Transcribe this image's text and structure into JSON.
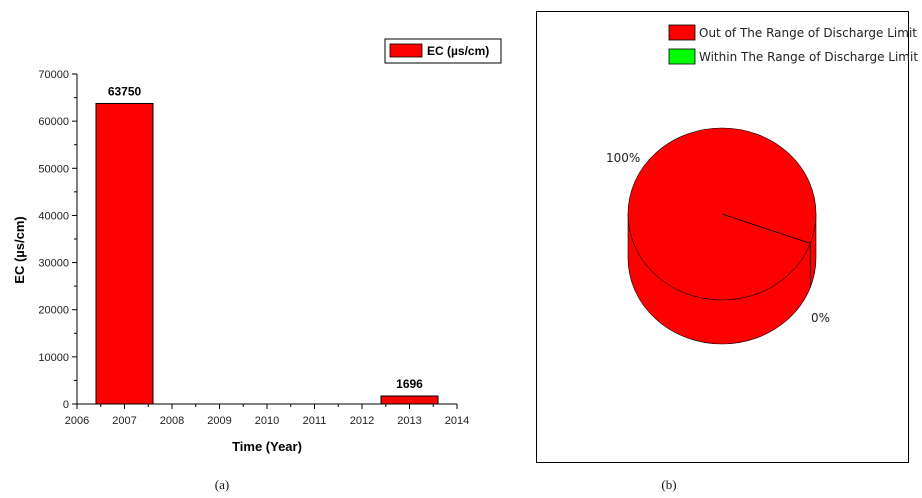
{
  "chart_data": [
    {
      "type": "bar",
      "panel_label": "(a)",
      "xlabel": "Time (Year)",
      "ylabel": "EC (µs/cm)",
      "xlim": [
        2006,
        2014
      ],
      "ylim": [
        0,
        70000
      ],
      "xticks": [
        "2006",
        "2007",
        "2008",
        "2009",
        "2010",
        "2011",
        "2012",
        "2013",
        "2014"
      ],
      "yticks": [
        "0",
        "10000",
        "20000",
        "30000",
        "40000",
        "50000",
        "60000",
        "70000"
      ],
      "bar_width": 1.2,
      "series": [
        {
          "name": "EC (µs/cm)",
          "color": "#ff0000",
          "points": [
            {
              "x": 2007,
              "y": 63750,
              "label": "63750"
            },
            {
              "x": 2013,
              "y": 1696,
              "label": "1696"
            }
          ]
        }
      ],
      "legend_position": "top-right",
      "grid": false
    },
    {
      "type": "pie",
      "style": "3d",
      "panel_label": "(b)",
      "slices": [
        {
          "label": "Out of The Range of Discharge Limit",
          "value": 100,
          "pct_label": "100%",
          "color": "#ff0000"
        },
        {
          "label": "Within The Range of Discharge Limit",
          "value": 0,
          "pct_label": "0%",
          "color": "#00ff00"
        }
      ],
      "legend_position": "top-right"
    }
  ]
}
